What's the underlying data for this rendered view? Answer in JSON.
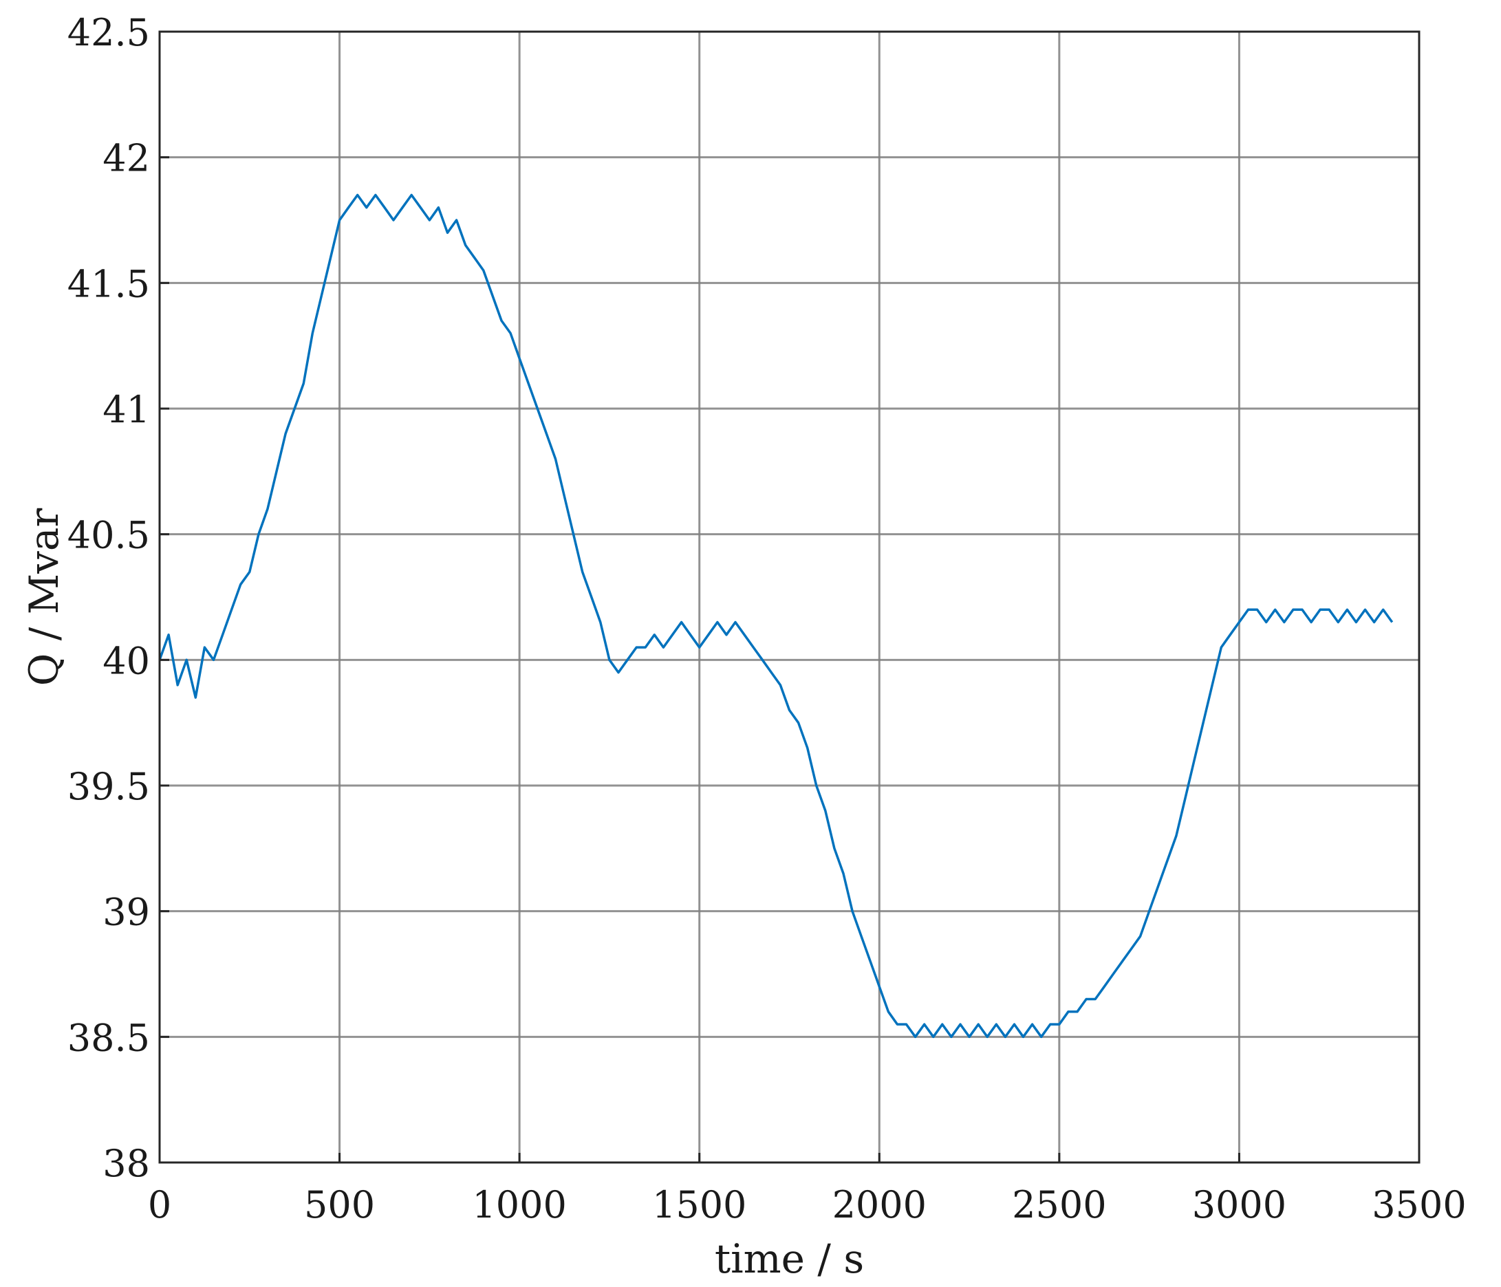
{
  "chart_data": {
    "type": "line",
    "title": "",
    "xlabel": "time / s",
    "ylabel": "Q / Mvar",
    "xlim": [
      0,
      3500
    ],
    "ylim": [
      38,
      42.5
    ],
    "xticks": [
      0,
      500,
      1000,
      1500,
      2000,
      2500,
      3000,
      3500
    ],
    "yticks": [
      38,
      38.5,
      39,
      39.5,
      40,
      40.5,
      41,
      41.5,
      42,
      42.5
    ],
    "xtick_labels": [
      "0",
      "500",
      "1000",
      "1500",
      "2000",
      "2500",
      "3000",
      "3500"
    ],
    "ytick_labels": [
      "38",
      "38.5",
      "39",
      "39.5",
      "40",
      "40.5",
      "41",
      "41.5",
      "42",
      "42.5"
    ],
    "grid": true,
    "legend": "none",
    "colors": {
      "series": "#0072BD",
      "grid": "#7f7f7f",
      "axes": "#262626"
    },
    "series": [
      {
        "x": [
          0,
          25,
          50,
          75,
          100,
          125,
          150,
          175,
          200,
          225,
          250,
          275,
          300,
          325,
          350,
          375,
          400,
          425,
          450,
          475,
          500,
          525,
          550,
          575,
          600,
          625,
          650,
          675,
          700,
          725,
          750,
          775,
          800,
          825,
          850,
          875,
          900,
          925,
          950,
          975,
          1000,
          1025,
          1050,
          1075,
          1100,
          1125,
          1150,
          1175,
          1200,
          1225,
          1250,
          1275,
          1300,
          1325,
          1350,
          1375,
          1400,
          1425,
          1450,
          1475,
          1500,
          1525,
          1550,
          1575,
          1600,
          1625,
          1650,
          1675,
          1700,
          1725,
          1750,
          1775,
          1800,
          1825,
          1850,
          1875,
          1900,
          1925,
          1950,
          1975,
          2000,
          2025,
          2050,
          2075,
          2100,
          2125,
          2150,
          2175,
          2200,
          2225,
          2250,
          2275,
          2300,
          2325,
          2350,
          2375,
          2400,
          2425,
          2450,
          2475,
          2500,
          2525,
          2550,
          2575,
          2600,
          2625,
          2650,
          2675,
          2700,
          2725,
          2750,
          2775,
          2800,
          2825,
          2850,
          2875,
          2900,
          2925,
          2950,
          2975,
          3000,
          3025,
          3050,
          3075,
          3100,
          3125,
          3150,
          3175,
          3200,
          3225,
          3250,
          3275,
          3300,
          3325,
          3350,
          3375,
          3400,
          3425
        ],
        "y": [
          40.0,
          40.1,
          39.9,
          40.0,
          39.85,
          40.05,
          40.0,
          40.1,
          40.2,
          40.3,
          40.35,
          40.5,
          40.6,
          40.75,
          40.9,
          41.0,
          41.1,
          41.3,
          41.45,
          41.6,
          41.75,
          41.8,
          41.85,
          41.8,
          41.85,
          41.8,
          41.75,
          41.8,
          41.85,
          41.8,
          41.75,
          41.8,
          41.7,
          41.75,
          41.65,
          41.6,
          41.55,
          41.45,
          41.35,
          41.3,
          41.2,
          41.1,
          41.0,
          40.9,
          40.8,
          40.65,
          40.5,
          40.35,
          40.25,
          40.15,
          40.0,
          39.95,
          40.0,
          40.05,
          40.05,
          40.1,
          40.05,
          40.1,
          40.15,
          40.1,
          40.05,
          40.1,
          40.15,
          40.1,
          40.15,
          40.1,
          40.05,
          40.0,
          39.95,
          39.9,
          39.8,
          39.75,
          39.65,
          39.5,
          39.4,
          39.25,
          39.15,
          39.0,
          38.9,
          38.8,
          38.7,
          38.6,
          38.55,
          38.55,
          38.5,
          38.55,
          38.5,
          38.55,
          38.5,
          38.55,
          38.5,
          38.55,
          38.5,
          38.55,
          38.5,
          38.55,
          38.5,
          38.55,
          38.5,
          38.55,
          38.55,
          38.6,
          38.6,
          38.65,
          38.65,
          38.7,
          38.75,
          38.8,
          38.85,
          38.9,
          39.0,
          39.1,
          39.2,
          39.3,
          39.45,
          39.6,
          39.75,
          39.9,
          40.05,
          40.1,
          40.15,
          40.2,
          40.2,
          40.15,
          40.2,
          40.15,
          40.2,
          40.2,
          40.15,
          40.2,
          40.2,
          40.15,
          40.2,
          40.15,
          40.2,
          40.15,
          40.2,
          40.15
        ]
      }
    ]
  }
}
